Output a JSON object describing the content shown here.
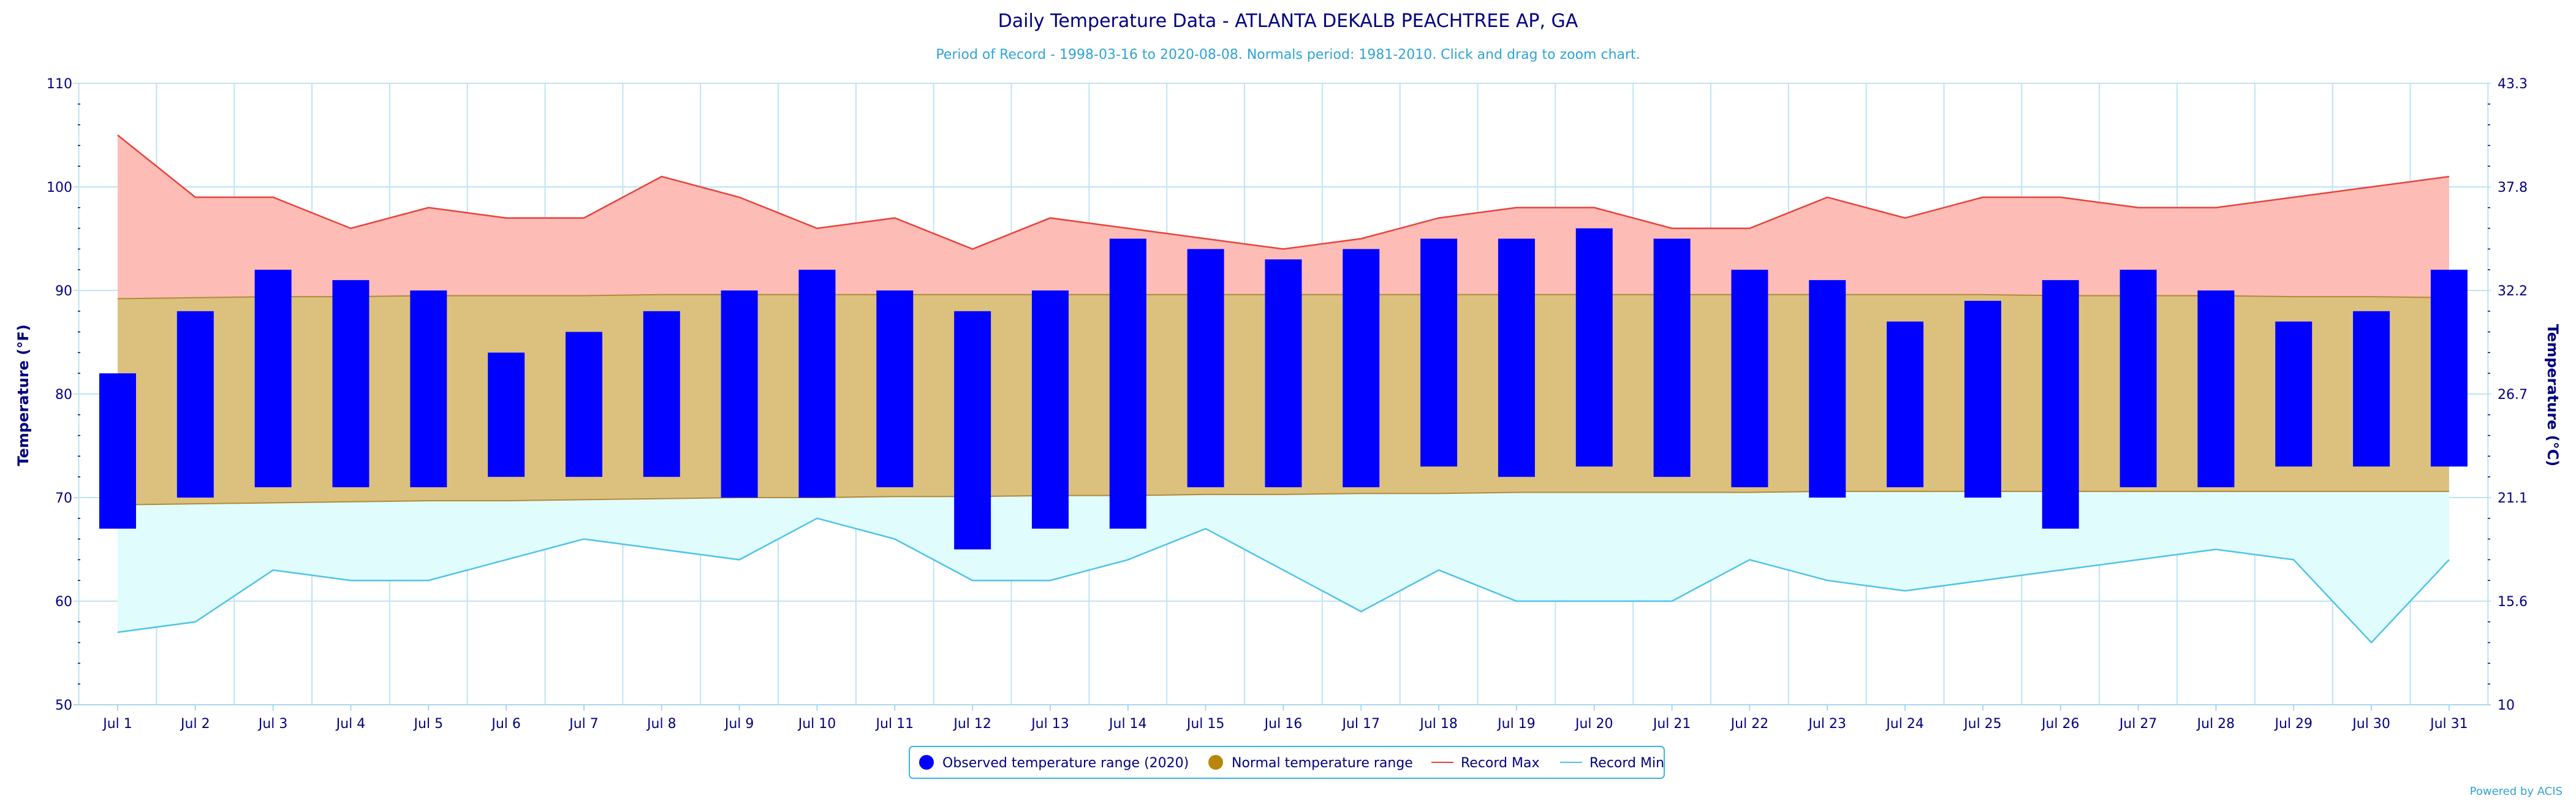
{
  "chart_data": {
    "type": "bar",
    "title": "Daily Temperature Data - ATLANTA DEKALB PEACHTREE AP, GA",
    "subtitle": "Period of Record - 1998-03-16 to 2020-08-08. Normals period: 1981-2010. Click and drag to zoom chart.",
    "ylabel_left": "Temperature (°F)",
    "ylabel_right": "Temperature (°C)",
    "ylim": [
      50,
      110
    ],
    "yticks_left": [
      "50",
      "60",
      "70",
      "80",
      "90",
      "100",
      "110"
    ],
    "yticks_right": [
      "10",
      "15.6",
      "21.1",
      "26.7",
      "32.2",
      "37.8",
      "43.3"
    ],
    "grid": true,
    "categories": [
      "Jul 1",
      "Jul 2",
      "Jul 3",
      "Jul 4",
      "Jul 5",
      "Jul 6",
      "Jul 7",
      "Jul 8",
      "Jul 9",
      "Jul 10",
      "Jul 11",
      "Jul 12",
      "Jul 13",
      "Jul 14",
      "Jul 15",
      "Jul 16",
      "Jul 17",
      "Jul 18",
      "Jul 19",
      "Jul 20",
      "Jul 21",
      "Jul 22",
      "Jul 23",
      "Jul 24",
      "Jul 25",
      "Jul 26",
      "Jul 27",
      "Jul 28",
      "Jul 29",
      "Jul 30",
      "Jul 31"
    ],
    "observed_range": {
      "name": "Observed temperature range (2020)",
      "color": "#0000ff",
      "low": [
        67,
        70,
        71,
        71,
        71,
        72,
        72,
        72,
        70,
        70,
        71,
        65,
        67,
        67,
        71,
        71,
        71,
        73,
        72,
        73,
        72,
        71,
        70,
        71,
        70,
        67,
        71,
        71,
        73,
        73,
        73
      ],
      "high": [
        82,
        88,
        92,
        91,
        90,
        84,
        86,
        88,
        90,
        92,
        90,
        88,
        90,
        95,
        94,
        93,
        94,
        95,
        95,
        96,
        95,
        92,
        91,
        87,
        89,
        91,
        92,
        90,
        87,
        88,
        92
      ]
    },
    "normal_range": {
      "name": "Normal temperature range",
      "color": "#b8860b",
      "fill": "#dcc17e",
      "low": [
        69.3,
        69.4,
        69.5,
        69.6,
        69.7,
        69.7,
        69.8,
        69.9,
        70.0,
        70.0,
        70.1,
        70.1,
        70.2,
        70.2,
        70.3,
        70.3,
        70.4,
        70.4,
        70.5,
        70.5,
        70.5,
        70.5,
        70.6,
        70.6,
        70.6,
        70.6,
        70.6,
        70.6,
        70.6,
        70.6,
        70.6
      ],
      "high": [
        89.2,
        89.3,
        89.4,
        89.4,
        89.5,
        89.5,
        89.5,
        89.6,
        89.6,
        89.6,
        89.6,
        89.6,
        89.6,
        89.6,
        89.6,
        89.6,
        89.6,
        89.6,
        89.6,
        89.6,
        89.6,
        89.6,
        89.6,
        89.6,
        89.6,
        89.5,
        89.5,
        89.5,
        89.4,
        89.4,
        89.3
      ]
    },
    "record_max": {
      "name": "Record Max",
      "color": "#e8423a",
      "fill": "#fdbcb6",
      "values": [
        105,
        99,
        99,
        96,
        98,
        97,
        97,
        101,
        99,
        96,
        97,
        94,
        97,
        96,
        95,
        94,
        95,
        97,
        98,
        98,
        96,
        96,
        99,
        97,
        99,
        99,
        98,
        98,
        99,
        100,
        101
      ]
    },
    "record_min": {
      "name": "Record Min",
      "color": "#4fc3e8",
      "fill": "#e0fcfc",
      "values": [
        57,
        58,
        63,
        62,
        62,
        64,
        66,
        65,
        64,
        68,
        66,
        62,
        62,
        64,
        67,
        63,
        59,
        63,
        60,
        60,
        60,
        64,
        62,
        61,
        62,
        63,
        64,
        65,
        64,
        56,
        64
      ]
    },
    "legend_position": "bottom-center"
  },
  "credit": "Powered by ACIS"
}
